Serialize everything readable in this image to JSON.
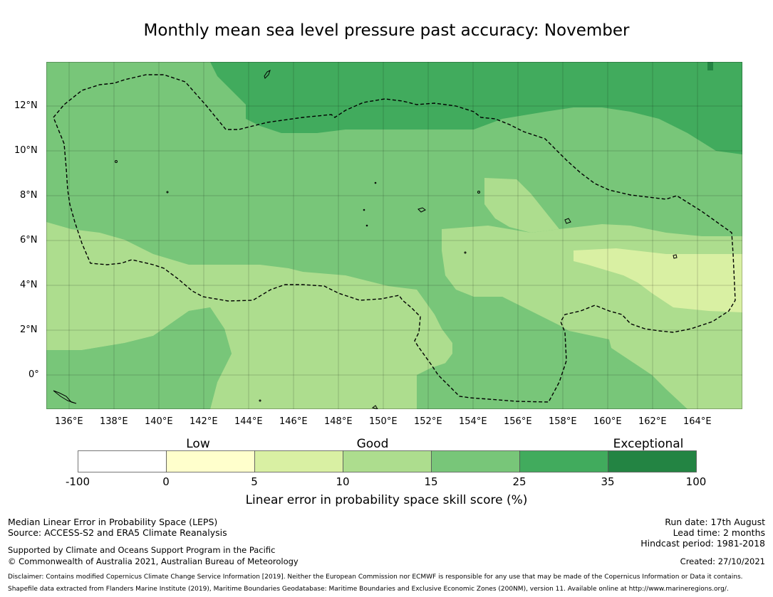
{
  "title": "Monthly mean sea level pressure past accuracy: November",
  "map": {
    "lon_ticks": [
      "136°E",
      "138°E",
      "140°E",
      "142°E",
      "144°E",
      "146°E",
      "148°E",
      "150°E",
      "152°E",
      "154°E",
      "156°E",
      "158°E",
      "160°E",
      "162°E",
      "164°E"
    ],
    "lat_ticks": [
      "12°N",
      "10°N",
      "8°N",
      "6°N",
      "4°N",
      "2°N",
      "0°"
    ],
    "colors": {
      "c0": "#ffffcc",
      "c1": "#d9f0a3",
      "c2": "#addd8e",
      "c3": "#78c679",
      "c4": "#41ab5d",
      "c5": "#238443"
    }
  },
  "colorbar": {
    "categories": [
      "Low",
      "Good",
      "Exceptional"
    ],
    "ticks": [
      "-100",
      "0",
      "5",
      "10",
      "15",
      "25",
      "35",
      "100"
    ],
    "colors": [
      "#ffffff",
      "#ffffcc",
      "#d9f0a3",
      "#addd8e",
      "#78c679",
      "#41ab5d",
      "#238443"
    ],
    "label": "Linear error in probability space skill score (%)"
  },
  "footer": {
    "left_1": "Median Linear Error in Probability Space (LEPS)",
    "left_2": "Source: ACCESS-S2 and ERA5 Climate Reanalysis",
    "left_3": "Supported by Climate and Oceans Support Program in the Pacific",
    "left_4": "© Commonwealth of Australia 2021, Australian Bureau of Meteorology",
    "right_1": "Run date: 17th August",
    "right_2": "Lead time: 2 months",
    "right_3": "Hindcast period: 1981-2018",
    "right_4": "Created: 27/10/2021",
    "disclaimer_1": "Disclaimer: Contains modified Copernicus Climate Change Service Information [2019]. Neither the European Commission nor ECMWF is responsible for any use that may be made of the Copernicus Information or Data it contains.",
    "disclaimer_2": "Shapefile data extracted from Flanders Marine Institute (2019), Maritime Boundaries Geodatabase: Maritime Boundaries and Exclusive Economic Zones (200NM), version 11. Available online at http://www.marineregions.org/."
  }
}
